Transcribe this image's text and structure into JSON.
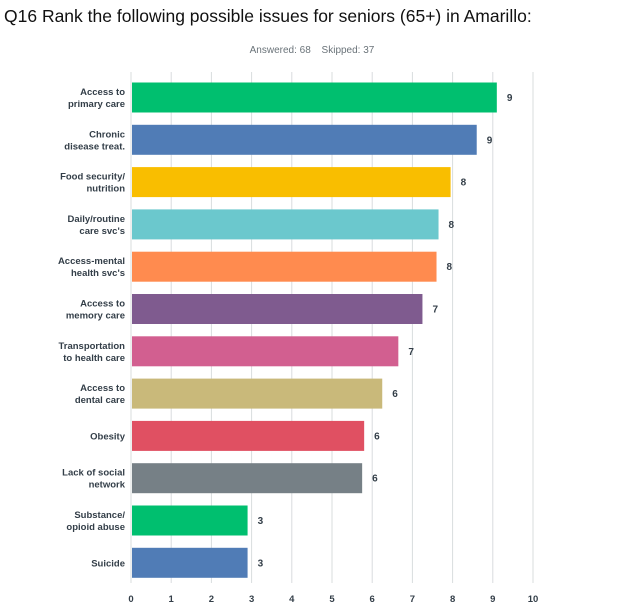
{
  "question_title": "Q16 Rank the following possible issues for seniors (65+) in Amarillo:",
  "answered": "Answered: 68",
  "skipped": "Skipped: 37",
  "chart_data": {
    "type": "bar",
    "orientation": "horizontal",
    "title": "",
    "xlabel": "",
    "ylabel": "",
    "xlim": [
      0,
      10
    ],
    "grid": true,
    "legend": "none",
    "xticks": [
      "0",
      "1",
      "2",
      "3",
      "4",
      "5",
      "6",
      "7",
      "8",
      "9",
      "10"
    ],
    "categories": [
      [
        "Access to",
        "primary care"
      ],
      [
        "Chronic",
        "disease treat."
      ],
      [
        "Food security/",
        "nutrition"
      ],
      [
        "Daily/routine",
        "care svc's"
      ],
      [
        "Access-mental",
        "health svc's"
      ],
      [
        "Access to",
        "memory care"
      ],
      [
        "Transportation",
        "to health care"
      ],
      [
        "Access to",
        "dental care"
      ],
      [
        "Obesity"
      ],
      [
        "Lack of social",
        "network"
      ],
      [
        "Substance/",
        "opioid abuse"
      ],
      [
        "Suicide"
      ]
    ],
    "values": [
      9.1,
      8.6,
      7.95,
      7.65,
      7.6,
      7.25,
      6.65,
      6.25,
      5.8,
      5.75,
      2.9,
      2.9
    ],
    "value_labels": [
      "9",
      "9",
      "8",
      "8",
      "8",
      "7",
      "7",
      "6",
      "6",
      "6",
      "3",
      "3"
    ],
    "colors": [
      "#00bf6f",
      "#507cb6",
      "#f9be00",
      "#6bc8cd",
      "#ff8b4f",
      "#7f5b8f",
      "#d25f90",
      "#c9b97a",
      "#e05062",
      "#768086",
      "#00bf6f",
      "#507cb6"
    ]
  }
}
